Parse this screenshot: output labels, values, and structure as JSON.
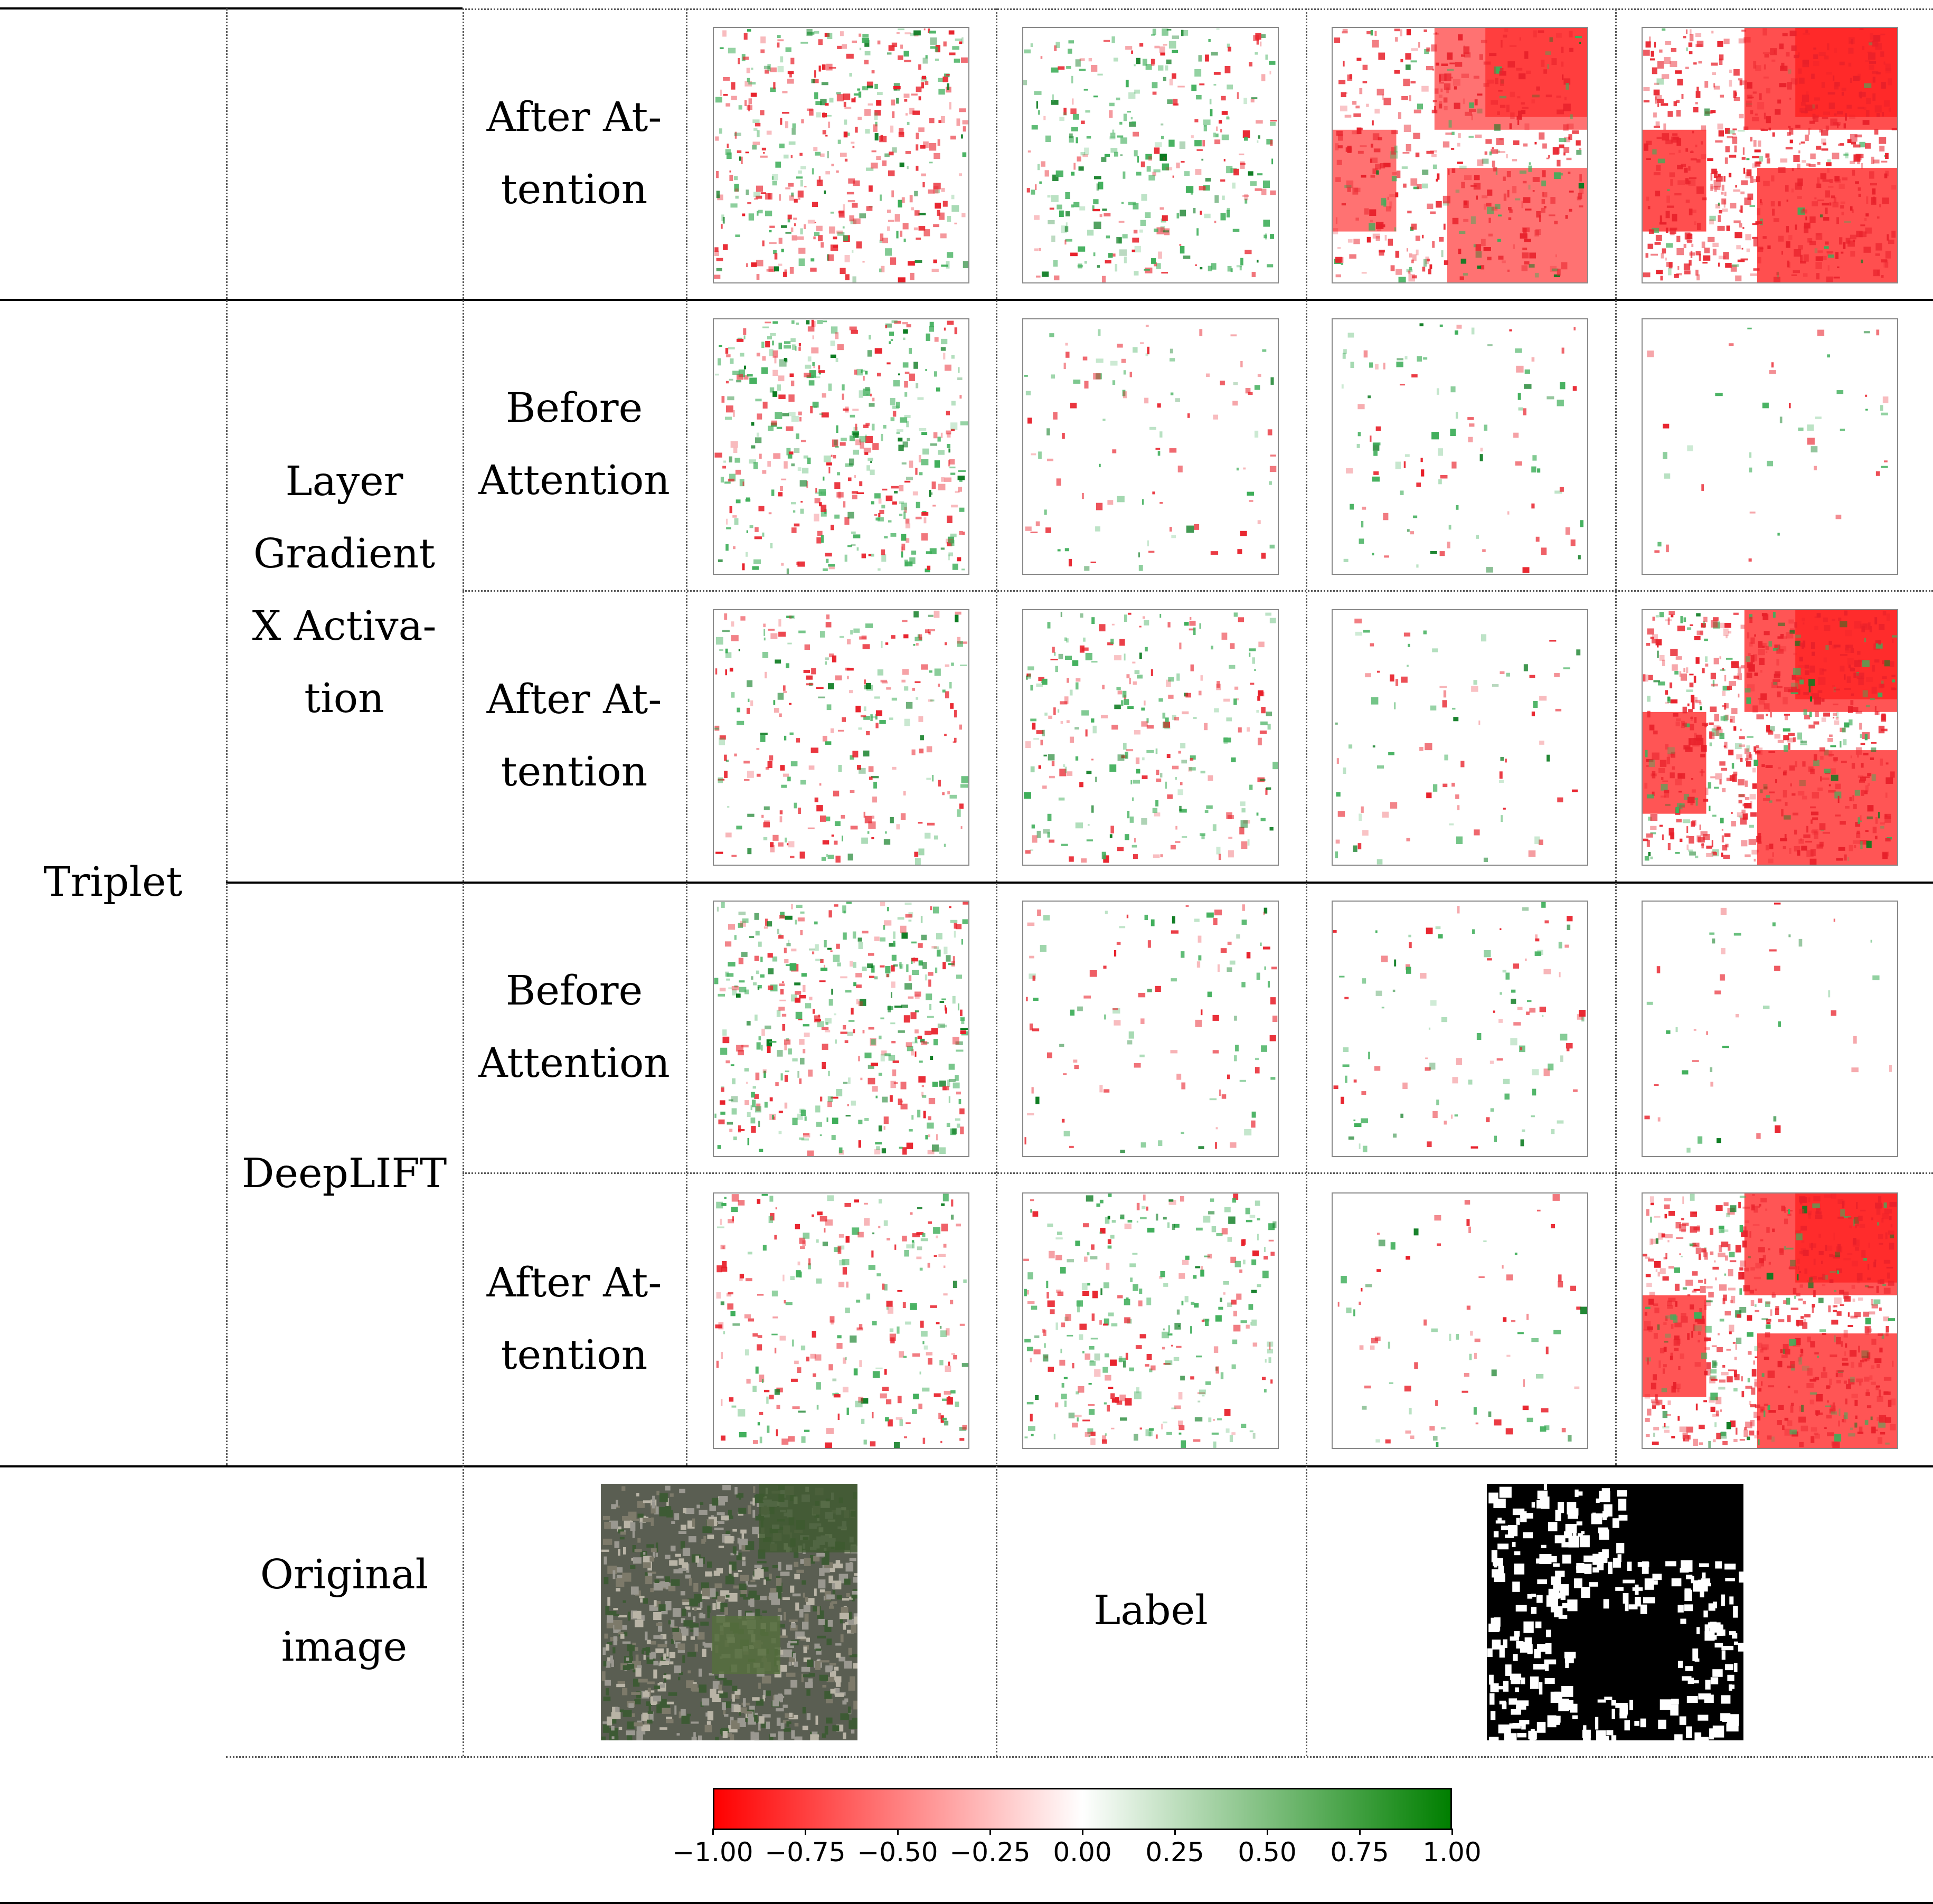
{
  "table": {
    "model_label": "Triplet",
    "method_labels": [
      "Layer Gradient X Activa-tion",
      "DeepLIFT"
    ],
    "stage_labels": {
      "after": [
        "After At-",
        "tention"
      ],
      "before": [
        "Before",
        "Attention"
      ]
    },
    "method_lines": {
      "lgxa": [
        "Layer",
        "Gradient",
        "X Activa-",
        "tion"
      ],
      "deeplift": [
        "DeepLIFT"
      ]
    },
    "bottom_row": {
      "original_label": [
        "Original",
        "image"
      ],
      "label_label": "Label"
    }
  },
  "colorbar": {
    "ticks": [
      "−1.00",
      "−0.75",
      "−0.50",
      "−0.25",
      "0.00",
      "0.25",
      "0.50",
      "0.75",
      "1.00"
    ],
    "min_color": "#ff0000",
    "mid_color": "#ffffff",
    "max_color": "#007f00"
  },
  "maps": [
    {
      "row": "top-after",
      "col": 1,
      "r": 0.35,
      "g": 0.25,
      "red_region": false
    },
    {
      "row": "top-after",
      "col": 2,
      "r": 0.15,
      "g": 0.3,
      "red_region": false
    },
    {
      "row": "top-after",
      "col": 3,
      "r": 0.5,
      "g": 0.1,
      "red_region": true
    },
    {
      "row": "top-after",
      "col": 4,
      "r": 0.8,
      "g": 0.05,
      "red_region": true
    },
    {
      "row": "lgxa-before",
      "col": 1,
      "r": 0.25,
      "g": 0.35,
      "red_region": false
    },
    {
      "row": "lgxa-before",
      "col": 2,
      "r": 0.06,
      "g": 0.05,
      "red_region": false
    },
    {
      "row": "lgxa-before",
      "col": 3,
      "r": 0.05,
      "g": 0.06,
      "red_region": false
    },
    {
      "row": "lgxa-before",
      "col": 4,
      "r": 0.01,
      "g": 0.01,
      "red_region": false
    },
    {
      "row": "lgxa-after",
      "col": 1,
      "r": 0.2,
      "g": 0.15,
      "red_region": false
    },
    {
      "row": "lgxa-after",
      "col": 2,
      "r": 0.15,
      "g": 0.2,
      "red_region": false
    },
    {
      "row": "lgxa-after",
      "col": 3,
      "r": 0.05,
      "g": 0.03,
      "red_region": false
    },
    {
      "row": "lgxa-after",
      "col": 4,
      "r": 0.75,
      "g": 0.2,
      "red_region": true
    },
    {
      "row": "deeplift-before",
      "col": 1,
      "r": 0.25,
      "g": 0.35,
      "red_region": false
    },
    {
      "row": "deeplift-before",
      "col": 2,
      "r": 0.06,
      "g": 0.06,
      "red_region": false
    },
    {
      "row": "deeplift-before",
      "col": 3,
      "r": 0.06,
      "g": 0.06,
      "red_region": false
    },
    {
      "row": "deeplift-before",
      "col": 4,
      "r": 0.01,
      "g": 0.01,
      "red_region": false
    },
    {
      "row": "deeplift-after",
      "col": 1,
      "r": 0.2,
      "g": 0.15,
      "red_region": false
    },
    {
      "row": "deeplift-after",
      "col": 2,
      "r": 0.15,
      "g": 0.25,
      "red_region": false
    },
    {
      "row": "deeplift-after",
      "col": 3,
      "r": 0.05,
      "g": 0.03,
      "red_region": false
    },
    {
      "row": "deeplift-after",
      "col": 4,
      "r": 0.75,
      "g": 0.2,
      "red_region": true
    }
  ]
}
